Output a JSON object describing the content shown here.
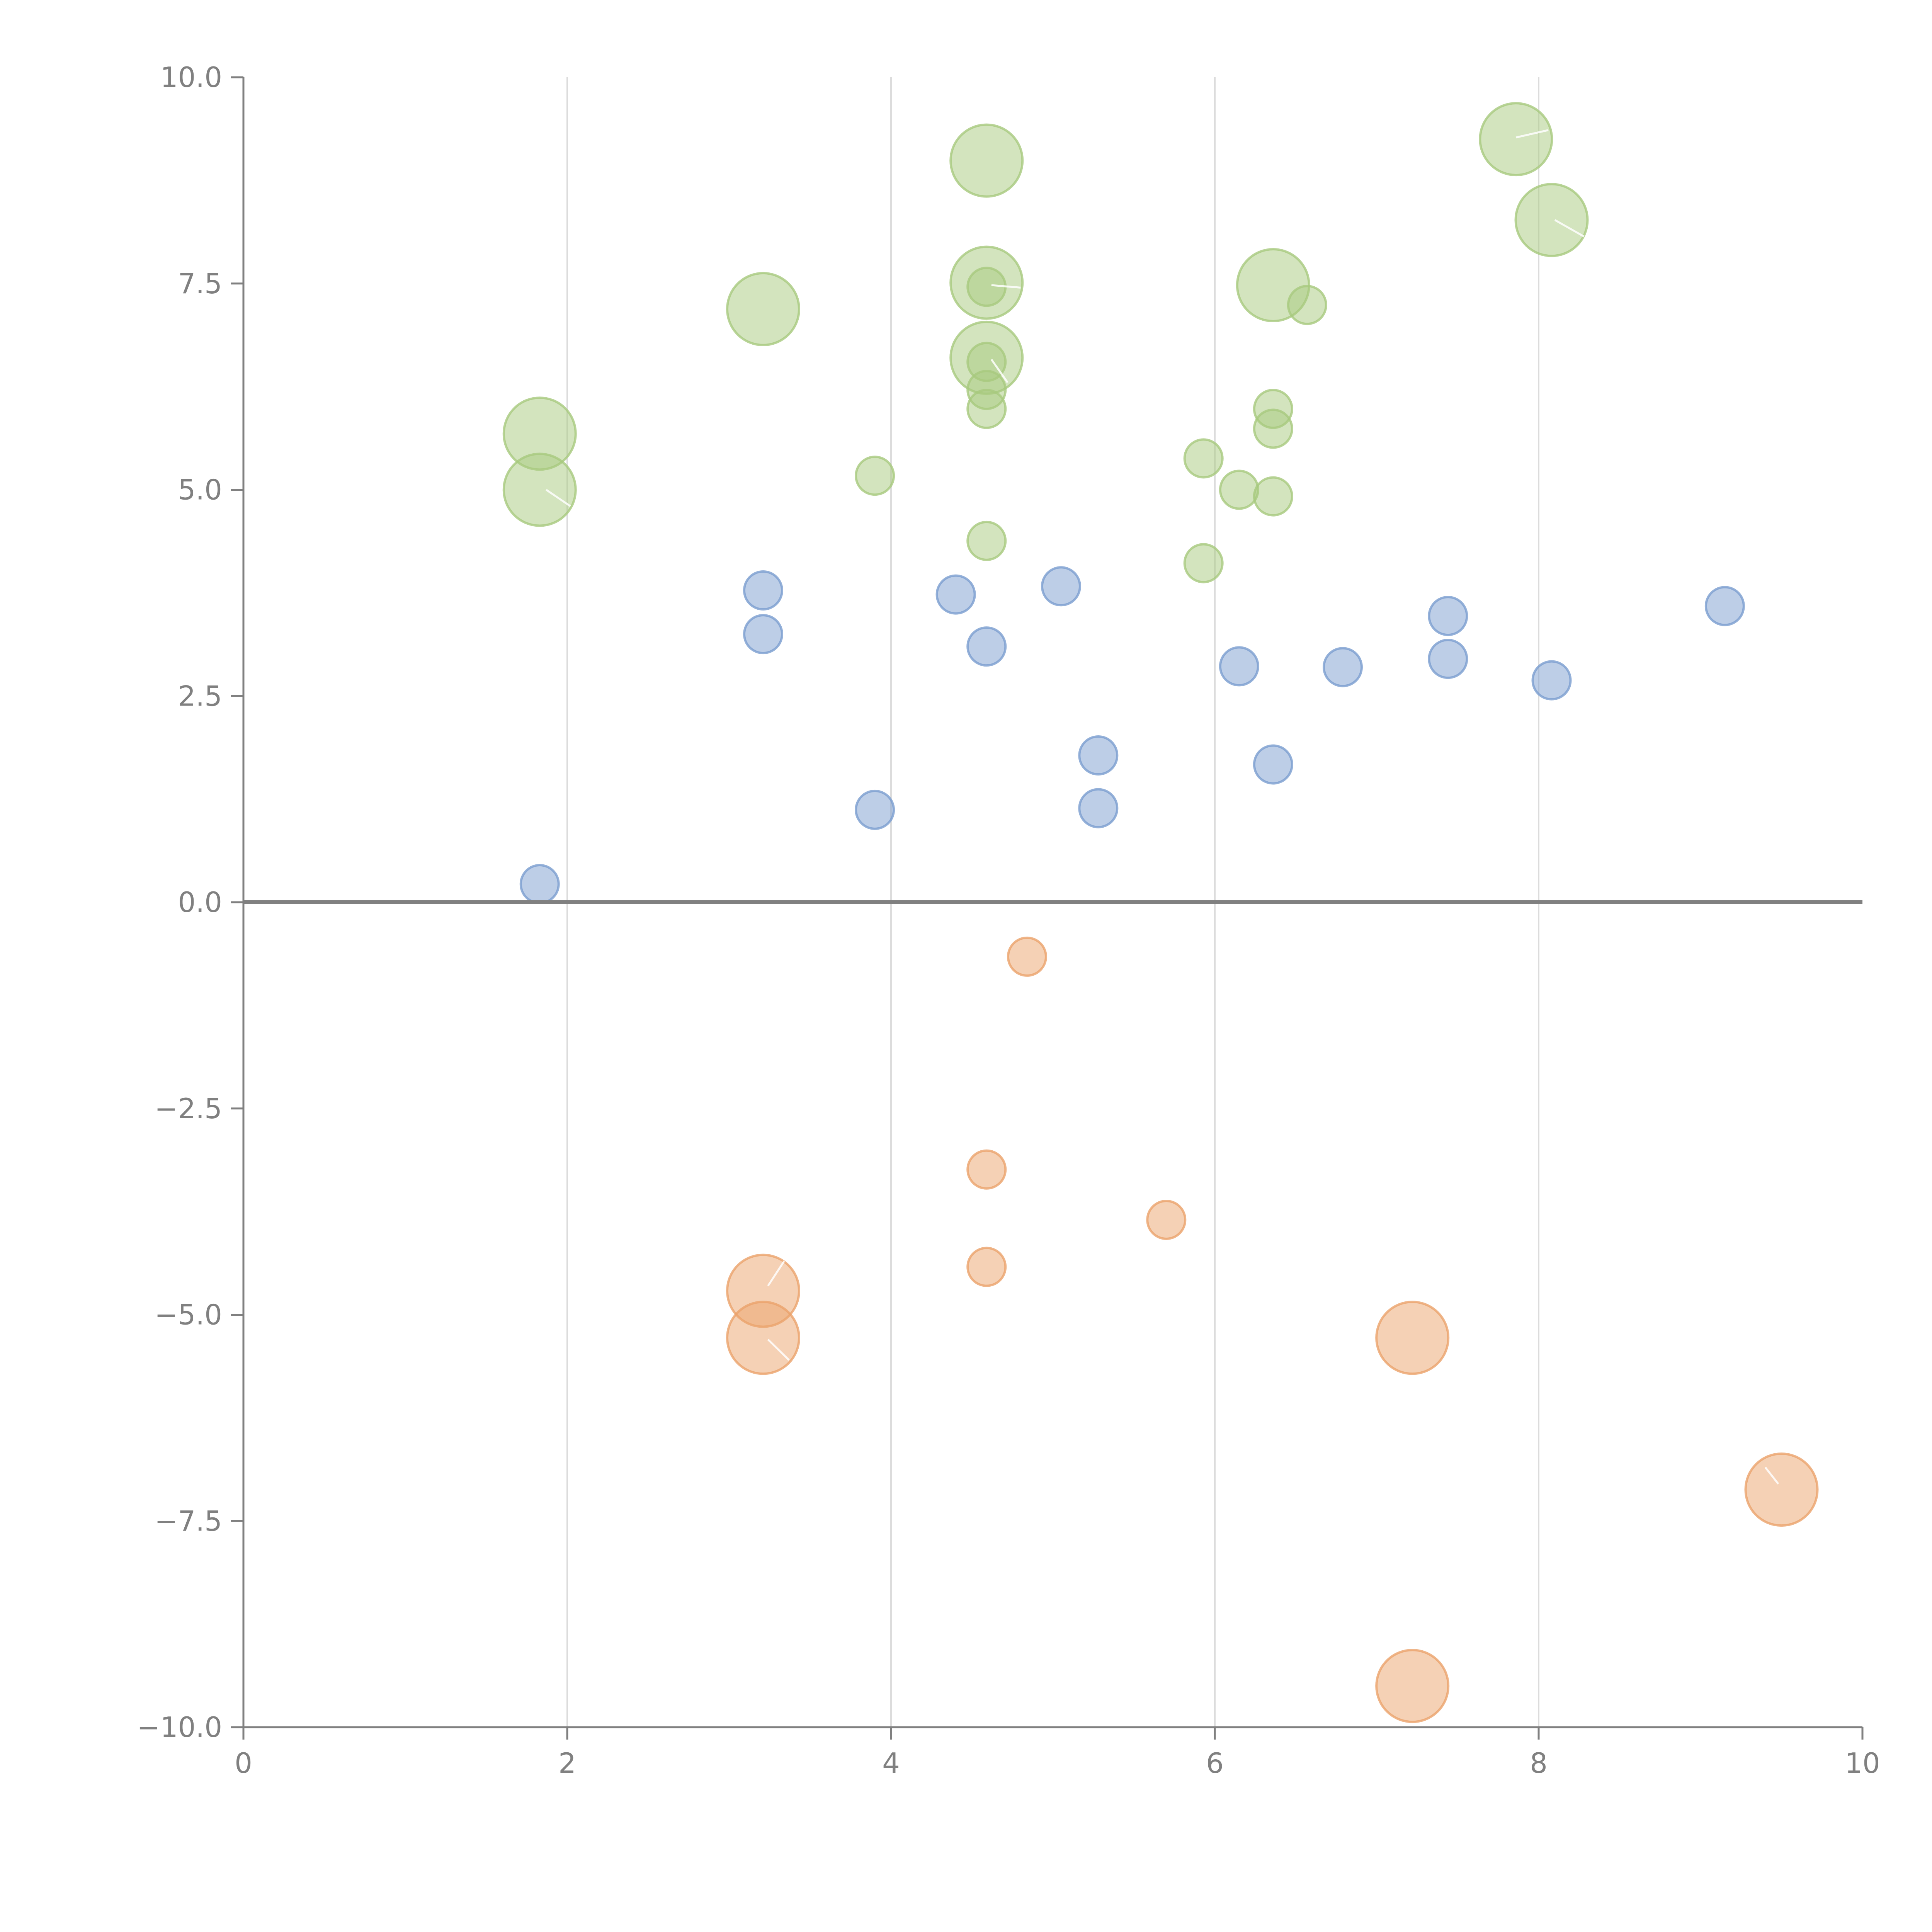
{
  "chart_data": {
    "type": "scatter",
    "title": "",
    "xlabel": "",
    "ylabel": "",
    "xlim": [
      0,
      10
    ],
    "ylim": [
      -10,
      10
    ],
    "x_ticks": [
      0,
      2,
      4,
      6,
      8,
      10
    ],
    "x_tick_labels": [
      "0",
      "2",
      "4",
      "6",
      "8",
      "10"
    ],
    "y_ticks": [
      10,
      7.5,
      5,
      2.5,
      0,
      -2.5,
      -5,
      -7.5,
      -10
    ],
    "y_tick_labels": [
      "10.0",
      "7.5",
      "5.0",
      "2.5",
      "0.0",
      "−2.5",
      "−5.0",
      "−7.5",
      "−10.0"
    ],
    "grid": "vertical",
    "zero_line": true,
    "series": [
      {
        "name": "blue",
        "color": "#7b9ed0",
        "points": [
          {
            "x": 1.83,
            "y": 0.22,
            "size": 1
          },
          {
            "x": 3.21,
            "y": 3.78,
            "size": 1
          },
          {
            "x": 3.21,
            "y": 3.25,
            "size": 1
          },
          {
            "x": 3.9,
            "y": 1.12,
            "size": 1
          },
          {
            "x": 4.4,
            "y": 3.73,
            "size": 1
          },
          {
            "x": 4.59,
            "y": 3.1,
            "size": 1
          },
          {
            "x": 5.05,
            "y": 3.83,
            "size": 1
          },
          {
            "x": 5.28,
            "y": 1.78,
            "size": 1
          },
          {
            "x": 5.28,
            "y": 1.14,
            "size": 1
          },
          {
            "x": 6.15,
            "y": 2.86,
            "size": 1
          },
          {
            "x": 6.36,
            "y": 1.67,
            "size": 1
          },
          {
            "x": 6.79,
            "y": 2.85,
            "size": 1
          },
          {
            "x": 7.44,
            "y": 3.47,
            "size": 1
          },
          {
            "x": 7.44,
            "y": 2.95,
            "size": 1
          },
          {
            "x": 8.08,
            "y": 2.69,
            "size": 1
          },
          {
            "x": 9.15,
            "y": 3.59,
            "size": 1
          }
        ]
      },
      {
        "name": "green",
        "color": "#a8c97e",
        "points": [
          {
            "x": 1.83,
            "y": 5.68,
            "size": 2
          },
          {
            "x": 1.83,
            "y": 5.0,
            "size": 2
          },
          {
            "x": 3.21,
            "y": 7.19,
            "size": 2
          },
          {
            "x": 3.9,
            "y": 5.17,
            "size": 1
          },
          {
            "x": 4.59,
            "y": 8.99,
            "size": 2
          },
          {
            "x": 4.59,
            "y": 7.51,
            "size": 2
          },
          {
            "x": 4.59,
            "y": 7.46,
            "size": 1
          },
          {
            "x": 4.59,
            "y": 6.6,
            "size": 2
          },
          {
            "x": 4.59,
            "y": 6.55,
            "size": 1
          },
          {
            "x": 4.59,
            "y": 6.21,
            "size": 1
          },
          {
            "x": 4.59,
            "y": 5.98,
            "size": 1
          },
          {
            "x": 4.59,
            "y": 4.38,
            "size": 1
          },
          {
            "x": 5.93,
            "y": 5.38,
            "size": 1
          },
          {
            "x": 5.93,
            "y": 4.11,
            "size": 1
          },
          {
            "x": 6.15,
            "y": 5.0,
            "size": 1
          },
          {
            "x": 6.36,
            "y": 7.48,
            "size": 2
          },
          {
            "x": 6.36,
            "y": 5.98,
            "size": 1
          },
          {
            "x": 6.36,
            "y": 5.74,
            "size": 1
          },
          {
            "x": 6.36,
            "y": 4.92,
            "size": 1
          },
          {
            "x": 6.57,
            "y": 7.24,
            "size": 1
          },
          {
            "x": 7.86,
            "y": 9.25,
            "size": 2
          },
          {
            "x": 8.08,
            "y": 8.27,
            "size": 2
          }
        ]
      },
      {
        "name": "orange",
        "color": "#eba36c",
        "points": [
          {
            "x": 4.84,
            "y": -0.66,
            "size": 1
          },
          {
            "x": 4.59,
            "y": -3.24,
            "size": 1
          },
          {
            "x": 4.59,
            "y": -4.42,
            "size": 1
          },
          {
            "x": 5.7,
            "y": -3.85,
            "size": 1
          },
          {
            "x": 3.21,
            "y": -4.71,
            "size": 2
          },
          {
            "x": 3.21,
            "y": -5.28,
            "size": 2
          },
          {
            "x": 7.22,
            "y": -5.28,
            "size": 2
          },
          {
            "x": 9.5,
            "y": -7.12,
            "size": 2
          },
          {
            "x": 7.22,
            "y": -9.5,
            "size": 2
          }
        ]
      }
    ],
    "leaders": [
      {
        "x1": 1.87,
        "y1": 5.0,
        "x2": 2.02,
        "y2": 4.8
      },
      {
        "x1": 4.62,
        "y1": 7.48,
        "x2": 4.8,
        "y2": 7.45
      },
      {
        "x1": 4.62,
        "y1": 6.58,
        "x2": 4.72,
        "y2": 6.3
      },
      {
        "x1": 7.86,
        "y1": 9.27,
        "x2": 8.06,
        "y2": 9.36
      },
      {
        "x1": 8.1,
        "y1": 8.27,
        "x2": 8.28,
        "y2": 8.07
      },
      {
        "x1": 3.24,
        "y1": -4.65,
        "x2": 3.34,
        "y2": -4.35
      },
      {
        "x1": 3.24,
        "y1": -5.3,
        "x2": 3.37,
        "y2": -5.55
      },
      {
        "x1": 9.48,
        "y1": -7.05,
        "x2": 9.4,
        "y2": -6.85
      }
    ]
  }
}
